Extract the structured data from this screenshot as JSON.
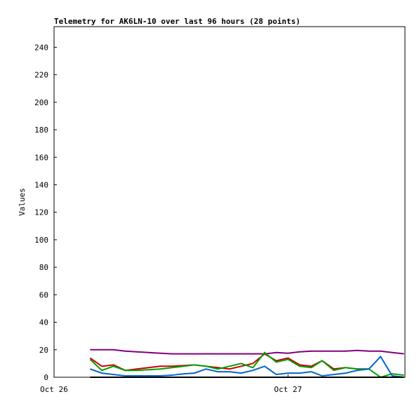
{
  "chart_data": {
    "type": "line",
    "title": "Telemetry for AK6LN-10 over last 96 hours (28 points)",
    "y_label": "Values",
    "x": [
      3.7,
      4.9,
      6.1,
      7.3,
      8.5,
      9.7,
      10.9,
      12.1,
      13.3,
      14.4,
      15.6,
      16.8,
      18.0,
      19.2,
      20.4,
      21.6,
      22.8,
      24.0,
      25.2,
      26.4,
      27.5,
      28.7,
      29.9,
      31.1,
      32.3,
      33.5,
      34.7,
      35.9
    ],
    "xlim": [
      0,
      36
    ],
    "xticks": [
      {
        "value": 0,
        "label": "Oct 26"
      },
      {
        "value": 24,
        "label": "Oct 27"
      }
    ],
    "ylim": [
      0,
      255
    ],
    "yticks": [
      0,
      20,
      40,
      60,
      80,
      100,
      120,
      140,
      160,
      180,
      200,
      220,
      240
    ],
    "series": [
      {
        "color": "#800080",
        "values": [
          20,
          20,
          20,
          19,
          18.5,
          18,
          17.5,
          17,
          17,
          17,
          17,
          17,
          17,
          17,
          17,
          17,
          18,
          17.5,
          18.5,
          19,
          19,
          19,
          19,
          19.5,
          19,
          19,
          18,
          17
        ]
      },
      {
        "color": "#cc0000",
        "values": [
          14,
          8,
          9,
          5,
          6,
          7,
          8,
          8,
          8.5,
          9,
          8,
          7,
          6,
          8,
          10,
          17,
          12,
          14,
          9,
          8,
          12,
          6,
          7,
          6,
          6,
          null,
          null,
          null
        ]
      },
      {
        "color": "#00a000",
        "values": [
          13,
          5,
          8,
          5,
          5,
          5.5,
          6,
          7,
          8,
          9,
          8,
          6,
          8,
          10,
          7,
          18,
          11,
          13,
          8,
          7,
          12,
          5,
          7,
          6,
          6,
          0,
          2.5,
          1.5
        ]
      },
      {
        "color": "#0066cc",
        "values": [
          6,
          3,
          2,
          1,
          1,
          1,
          1,
          1.5,
          2.5,
          3,
          6,
          4,
          4,
          3,
          5,
          8,
          2,
          3,
          3,
          4,
          1,
          2,
          3,
          5,
          6,
          15,
          1,
          0
        ]
      },
      {
        "color": "#000000",
        "values": [
          0,
          0,
          0,
          0,
          0,
          0,
          0,
          0,
          0,
          0,
          0,
          0,
          0,
          0,
          0,
          0,
          0,
          0,
          0,
          0,
          0,
          0,
          0,
          0,
          0,
          0,
          0,
          0
        ]
      }
    ]
  }
}
